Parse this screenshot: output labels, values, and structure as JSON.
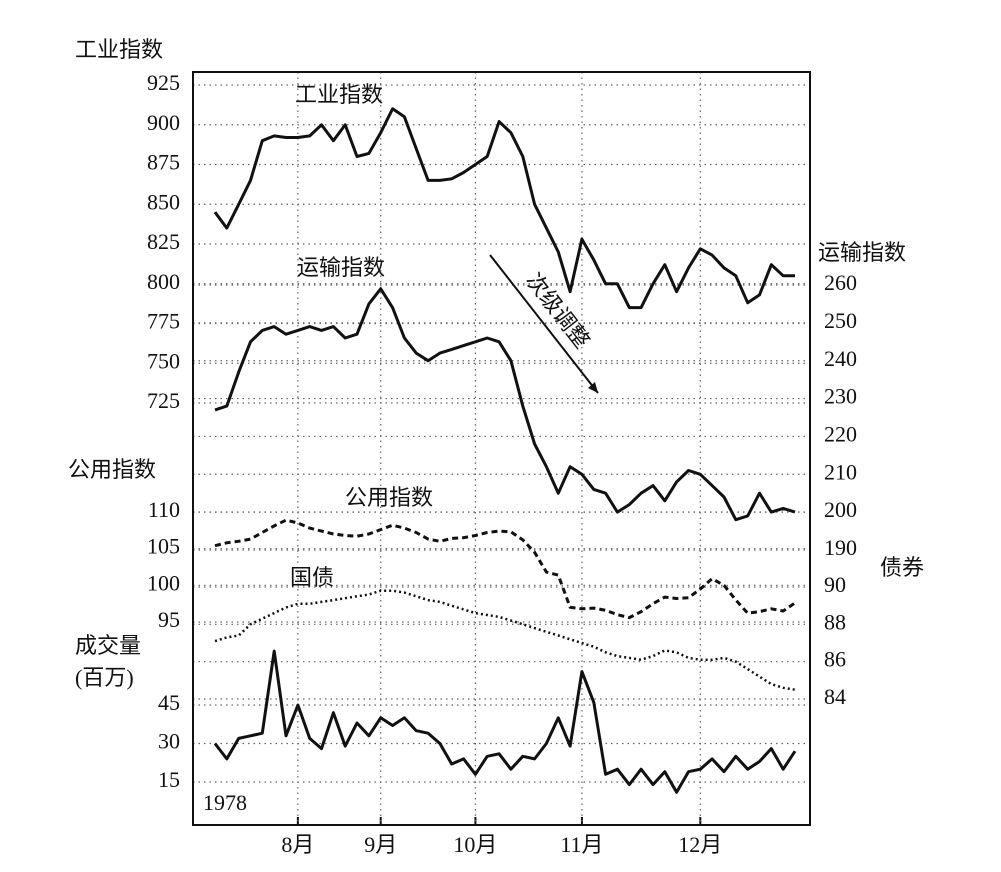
{
  "chart_data": [
    {
      "type": "line",
      "y_label": "工业指数",
      "annotation": "次级调整",
      "ylim": [
        725,
        925
      ],
      "yticks": [
        725,
        750,
        775,
        800,
        825,
        850,
        875,
        900,
        925
      ],
      "series": [
        {
          "name": "工业指数",
          "color": "#111111",
          "line_style": "solid",
          "values": [
            845,
            835,
            850,
            865,
            890,
            893,
            892,
            892,
            893,
            900,
            890,
            900,
            880,
            882,
            895,
            910,
            905,
            885,
            865,
            865,
            866,
            870,
            875,
            880,
            902,
            895,
            880,
            850,
            835,
            820,
            795,
            828,
            815,
            800,
            800,
            785,
            785,
            800,
            812,
            795,
            810,
            822,
            818,
            810,
            805,
            788,
            793,
            812,
            805,
            805
          ]
        }
      ]
    },
    {
      "type": "line",
      "y_label": "运输指数",
      "ylim": [
        190,
        260
      ],
      "yticks": [
        190,
        200,
        210,
        220,
        230,
        240,
        250,
        260
      ],
      "series": [
        {
          "name": "运输指数",
          "color": "#111111",
          "line_style": "solid",
          "values": [
            227,
            228,
            237,
            245,
            248,
            249,
            247,
            248,
            249,
            248,
            249,
            246,
            247,
            255,
            259,
            254,
            246,
            242,
            240,
            242,
            243,
            244,
            245,
            246,
            245,
            240,
            228,
            218,
            212,
            205,
            212,
            210,
            206,
            205,
            200,
            202,
            205,
            207,
            203,
            208,
            211,
            210,
            207,
            204,
            198,
            199,
            205,
            200,
            201,
            200
          ]
        }
      ]
    },
    {
      "type": "line",
      "y_label": "公用指数",
      "ylim": [
        95,
        110
      ],
      "yticks": [
        95,
        100,
        105,
        110
      ],
      "series": [
        {
          "name": "公用指数",
          "color": "#111111",
          "line_style": "dashed",
          "values": [
            105.4,
            105.8,
            106,
            106.3,
            107.2,
            108.1,
            108.9,
            108.5,
            107.8,
            107.4,
            107,
            106.8,
            106.7,
            107,
            107.6,
            108.2,
            107.8,
            107.2,
            106.3,
            106,
            106.4,
            106.5,
            106.8,
            107.2,
            107.4,
            107.3,
            106.2,
            104.5,
            101.8,
            101.4,
            97,
            96.8,
            96.9,
            96.6,
            96,
            95.6,
            96.4,
            97.5,
            98.4,
            98.2,
            98.3,
            99.5,
            100.9,
            100,
            98,
            96.2,
            96.4,
            96.8,
            96.5,
            97.6
          ]
        }
      ]
    },
    {
      "type": "line",
      "y_label": "债券",
      "ylim": [
        84,
        90
      ],
      "yticks": [
        84,
        86,
        88,
        90
      ],
      "series": [
        {
          "name": "国债",
          "color": "#111111",
          "line_style": "dotted",
          "values": [
            87.1,
            87.3,
            87.4,
            88,
            88.3,
            88.6,
            88.9,
            89.1,
            89.1,
            89.2,
            89.3,
            89.4,
            89.5,
            89.6,
            89.8,
            89.8,
            89.7,
            89.5,
            89.3,
            89.2,
            89,
            88.8,
            88.6,
            88.5,
            88.4,
            88.2,
            88,
            87.8,
            87.6,
            87.4,
            87.2,
            87,
            86.8,
            86.5,
            86.3,
            86.2,
            86.1,
            86.3,
            86.6,
            86.5,
            86.2,
            86.1,
            86.1,
            86.2,
            86,
            85.6,
            85.2,
            84.8,
            84.6,
            84.5
          ]
        }
      ]
    },
    {
      "type": "line",
      "y_label": [
        "成交量",
        "(百万)"
      ],
      "year": "1978",
      "ylim": [
        15,
        45
      ],
      "yticks": [
        15,
        30,
        45
      ],
      "categories": [
        null,
        null,
        null,
        null,
        null,
        null,
        null,
        "8月",
        null,
        null,
        null,
        null,
        null,
        null,
        "9月",
        null,
        null,
        null,
        null,
        null,
        null,
        null,
        "10月",
        null,
        null,
        null,
        null,
        null,
        null,
        null,
        null,
        "11月",
        null,
        null,
        null,
        null,
        null,
        null,
        null,
        null,
        null,
        "12月",
        null,
        null,
        null,
        null,
        null,
        null,
        null,
        null
      ],
      "series": [
        {
          "color": "#111111",
          "line_style": "solid",
          "values": [
            30,
            24,
            32,
            33,
            34,
            66,
            33,
            45,
            32,
            28,
            42,
            29,
            38,
            33,
            40,
            37,
            40,
            35,
            34,
            30,
            22,
            24,
            18,
            25,
            26,
            20,
            25,
            24,
            30,
            40,
            29,
            58,
            46,
            18,
            20,
            14,
            20,
            14,
            19,
            11,
            19,
            20,
            24,
            19,
            25,
            20,
            23,
            28,
            20,
            27
          ]
        }
      ]
    }
  ]
}
